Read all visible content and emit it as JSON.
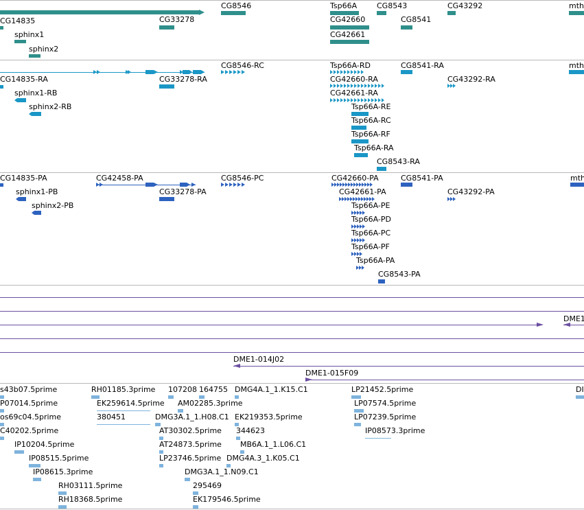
{
  "colors": {
    "gene": "#2f8f8b",
    "transcript": "#1a97c6",
    "protein": "#2d62bf",
    "clone": "#6b4fa0",
    "est": "#7eb3dd",
    "separator": "#b8b8b8"
  },
  "genes": [
    "CG14835",
    "sphinx1",
    "sphinx2",
    "CG33278",
    "CG8546",
    "Tsp66A",
    "CG42660",
    "CG42661",
    "CG8543",
    "CG8541",
    "CG43292",
    "mth"
  ],
  "transcripts": [
    "CG14835-RA",
    "sphinx1-RB",
    "sphinx2-RB",
    "CG33278-RA",
    "CG8546-RC",
    "Tsp66A-RD",
    "CG42660-RA",
    "CG42661-RA",
    "Tsp66A-RE",
    "Tsp66A-RC",
    "Tsp66A-RF",
    "Tsp66A-RA",
    "CG8543-RA",
    "CG8541-RA",
    "CG43292-RA",
    "mth"
  ],
  "proteins": [
    "CG14835-PA",
    "sphinx1-PB",
    "sphinx2-PB",
    "CG42458-PA",
    "CG33278-PA",
    "CG8546-PC",
    "CG42660-PA",
    "CG42661-PA",
    "Tsp66A-PE",
    "Tsp66A-PD",
    "Tsp66A-PC",
    "Tsp66A-PF",
    "Tsp66A-PA",
    "CG8543-PA",
    "CG8541-PA",
    "CG43292-PA",
    "mth"
  ],
  "clones": [
    "DME1",
    "DME1-014J02",
    "DME1-015F09"
  ],
  "ests": [
    "s43b07.5prime",
    "P07014.5prime",
    "os69c04.5prime",
    "C40202.5prime",
    "IP10204.5prime",
    "IP08515.5prime",
    "IP08615.3prime",
    "RH03111.5prime",
    "RH18368.5prime",
    "RH01185.3prime",
    "EK259614.5prime",
    "380451",
    "107208",
    "164755",
    "AM02285.3prime",
    "DMG3A.1_1.H08.C1",
    "AT30302.5prime",
    "AT24873.5prime",
    "LP23746.5prime",
    "DMG3A.1_1.N09.C1",
    "295469",
    "EK179546.5prime",
    "DMG4A.1_1.K15.C1",
    "EK219353.5prime",
    "344623",
    "MB6A.1_1.L06.C1",
    "DMG4A.3_1.K05.C1",
    "LP21452.5prime",
    "LP07574.5prime",
    "LP07239.5prime",
    "IP08573.3prime",
    "DI"
  ]
}
